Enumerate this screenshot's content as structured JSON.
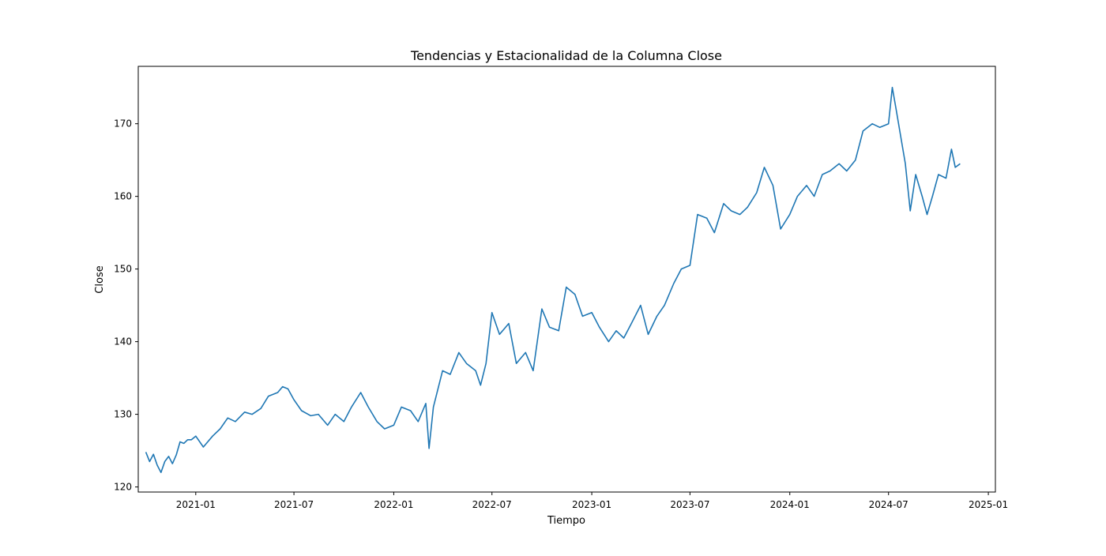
{
  "chart_data": {
    "type": "line",
    "title": "Tendencias y Estacionalidad de la Columna Close",
    "xlabel": "Tiempo",
    "ylabel": "Close",
    "xlim": [
      "2020-09-17",
      "2025-01-14"
    ],
    "ylim": [
      119.3,
      177.9
    ],
    "x_ticks": [
      "2021-01",
      "2021-07",
      "2022-01",
      "2022-07",
      "2023-01",
      "2023-07",
      "2024-01",
      "2024-07",
      "2025-01"
    ],
    "y_ticks": [
      120,
      130,
      140,
      150,
      160,
      170
    ],
    "grid": false,
    "series": [
      {
        "color": "#1f77b4",
        "x": [
          "2020-10-01",
          "2020-10-08",
          "2020-10-15",
          "2020-10-22",
          "2020-10-29",
          "2020-11-05",
          "2020-11-12",
          "2020-11-19",
          "2020-11-26",
          "2020-12-03",
          "2020-12-10",
          "2020-12-17",
          "2020-12-24",
          "2021-01-01",
          "2021-01-15",
          "2021-02-01",
          "2021-02-15",
          "2021-03-01",
          "2021-03-15",
          "2021-04-01",
          "2021-04-15",
          "2021-05-01",
          "2021-05-15",
          "2021-06-01",
          "2021-06-10",
          "2021-06-20",
          "2021-07-01",
          "2021-07-15",
          "2021-08-01",
          "2021-08-15",
          "2021-09-01",
          "2021-09-15",
          "2021-10-01",
          "2021-10-15",
          "2021-11-01",
          "2021-11-15",
          "2021-12-01",
          "2021-12-15",
          "2022-01-01",
          "2022-01-15",
          "2022-02-01",
          "2022-02-15",
          "2022-03-01",
          "2022-03-07",
          "2022-03-15",
          "2022-04-01",
          "2022-04-15",
          "2022-05-01",
          "2022-05-15",
          "2022-06-01",
          "2022-06-10",
          "2022-06-20",
          "2022-07-01",
          "2022-07-15",
          "2022-08-01",
          "2022-08-15",
          "2022-09-01",
          "2022-09-15",
          "2022-10-01",
          "2022-10-15",
          "2022-11-01",
          "2022-11-15",
          "2022-12-01",
          "2022-12-15",
          "2023-01-01",
          "2023-01-15",
          "2023-02-01",
          "2023-02-15",
          "2023-03-01",
          "2023-03-15",
          "2023-04-01",
          "2023-04-15",
          "2023-05-01",
          "2023-05-15",
          "2023-06-01",
          "2023-06-15",
          "2023-07-01",
          "2023-07-15",
          "2023-08-01",
          "2023-08-15",
          "2023-09-01",
          "2023-09-15",
          "2023-10-01",
          "2023-10-15",
          "2023-11-01",
          "2023-11-15",
          "2023-12-01",
          "2023-12-15",
          "2024-01-01",
          "2024-01-15",
          "2024-02-01",
          "2024-02-15",
          "2024-03-01",
          "2024-03-15",
          "2024-04-01",
          "2024-04-15",
          "2024-05-01",
          "2024-05-15",
          "2024-06-01",
          "2024-06-15",
          "2024-07-01",
          "2024-07-08",
          "2024-07-15",
          "2024-08-01",
          "2024-08-10",
          "2024-08-20",
          "2024-09-01",
          "2024-09-10",
          "2024-09-20",
          "2024-10-01",
          "2024-10-15",
          "2024-10-25",
          "2024-11-01",
          "2024-11-10"
        ],
        "y": [
          124.8,
          123.5,
          124.5,
          123.0,
          122.0,
          123.5,
          124.2,
          123.2,
          124.4,
          126.2,
          126.0,
          126.5,
          126.5,
          127.0,
          125.5,
          127.0,
          128.0,
          129.5,
          129.0,
          130.3,
          130.0,
          130.8,
          132.5,
          133.0,
          133.8,
          133.5,
          132.0,
          130.5,
          129.8,
          130.0,
          128.5,
          130.0,
          129.0,
          131.0,
          133.0,
          131.0,
          129.0,
          128.0,
          128.5,
          131.0,
          130.5,
          129.0,
          131.5,
          125.3,
          131.0,
          136.0,
          135.5,
          138.5,
          137.0,
          136.0,
          134.0,
          137.0,
          144.0,
          141.0,
          142.5,
          137.0,
          138.5,
          136.0,
          144.5,
          142.0,
          141.5,
          147.5,
          146.5,
          143.5,
          144.0,
          142.0,
          140.0,
          141.5,
          140.5,
          142.5,
          145.0,
          141.0,
          143.5,
          145.0,
          148.0,
          150.0,
          150.5,
          157.5,
          157.0,
          155.0,
          159.0,
          158.0,
          157.5,
          158.5,
          160.5,
          164.0,
          161.5,
          155.5,
          157.5,
          160.0,
          161.5,
          160.0,
          163.0,
          163.5,
          164.5,
          163.5,
          165.0,
          169.0,
          170.0,
          169.5,
          170.0,
          175.0,
          172.0,
          164.5,
          158.0,
          163.0,
          160.0,
          157.5,
          160.0,
          163.0,
          162.5,
          166.5,
          164.0,
          164.5
        ]
      }
    ]
  }
}
